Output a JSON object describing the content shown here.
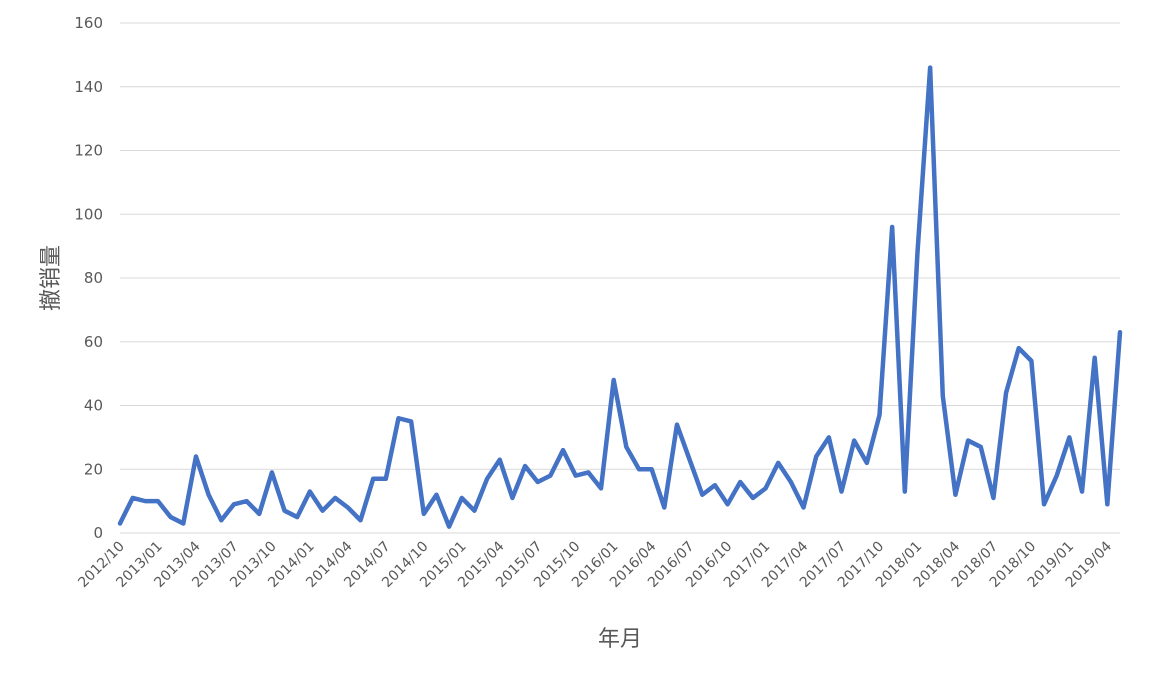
{
  "chart_data": {
    "type": "line",
    "title": "",
    "xlabel": "年月",
    "ylabel": "撤销量",
    "ylim": [
      0,
      160
    ],
    "yticks": [
      0,
      20,
      40,
      60,
      80,
      100,
      120,
      140,
      160
    ],
    "grid": true,
    "legend": "none",
    "x_tick_labels": [
      "2012/10",
      "2013/01",
      "2013/04",
      "2013/07",
      "2013/10",
      "2014/01",
      "2014/04",
      "2014/07",
      "2014/10",
      "2015/01",
      "2015/04",
      "2015/07",
      "2015/10",
      "2016/01",
      "2016/04",
      "2016/07",
      "2016/10",
      "2017/01",
      "2017/04",
      "2017/07",
      "2017/10",
      "2018/01",
      "2018/04",
      "2018/07",
      "2018/10",
      "2019/01",
      "2019/04"
    ],
    "series": [
      {
        "color": "#4472c4",
        "x": [
          "2012/10",
          "2012/11",
          "2012/12",
          "2013/01",
          "2013/02",
          "2013/03",
          "2013/04",
          "2013/05",
          "2013/06",
          "2013/07",
          "2013/08",
          "2013/09",
          "2013/10",
          "2013/11",
          "2013/12",
          "2014/01",
          "2014/02",
          "2014/03",
          "2014/04",
          "2014/05",
          "2014/06",
          "2014/07",
          "2014/08",
          "2014/09",
          "2014/10",
          "2014/11",
          "2014/12",
          "2015/01",
          "2015/02",
          "2015/03",
          "2015/04",
          "2015/05",
          "2015/06",
          "2015/07",
          "2015/08",
          "2015/09",
          "2015/10",
          "2015/11",
          "2015/12",
          "2016/01",
          "2016/02",
          "2016/03",
          "2016/04",
          "2016/05",
          "2016/06",
          "2016/07",
          "2016/08",
          "2016/09",
          "2016/10",
          "2016/11",
          "2016/12",
          "2017/01",
          "2017/02",
          "2017/03",
          "2017/04",
          "2017/05",
          "2017/06",
          "2017/07",
          "2017/08",
          "2017/09",
          "2017/10",
          "2017/11",
          "2017/12",
          "2018/01",
          "2018/02",
          "2018/03",
          "2018/04",
          "2018/05",
          "2018/06",
          "2018/07",
          "2018/08",
          "2018/09",
          "2018/10",
          "2018/11",
          "2018/12",
          "2019/01",
          "2019/02",
          "2019/03",
          "2019/04",
          "2019/05"
        ],
        "values": [
          3,
          11,
          10,
          10,
          5,
          3,
          24,
          12,
          4,
          9,
          10,
          6,
          19,
          7,
          5,
          13,
          7,
          11,
          8,
          4,
          17,
          17,
          36,
          35,
          6,
          12,
          2,
          11,
          7,
          17,
          23,
          11,
          21,
          16,
          18,
          26,
          18,
          19,
          14,
          48,
          27,
          20,
          20,
          8,
          34,
          23,
          12,
          15,
          9,
          16,
          11,
          14,
          22,
          16,
          8,
          24,
          30,
          13,
          29,
          22,
          37,
          96,
          13,
          88,
          146,
          43,
          12,
          29,
          27,
          11,
          44,
          58,
          54,
          9,
          18,
          30,
          13,
          55,
          9,
          63
        ]
      }
    ]
  }
}
